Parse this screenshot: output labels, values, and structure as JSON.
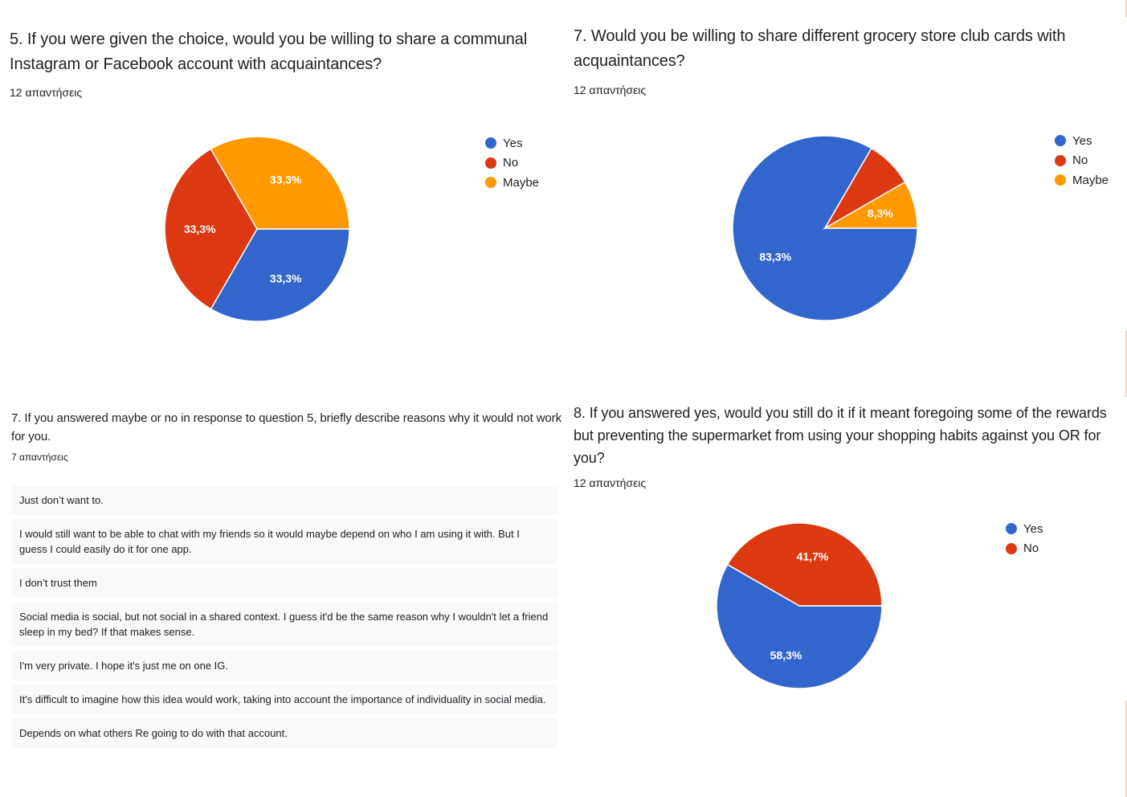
{
  "chart_data": [
    {
      "type": "pie",
      "title": "5. If you were given the choice, would you be willing to share a communal Instagram or Facebook account with acquaintances?",
      "subtitle": "12 απαντήσεις",
      "categories": [
        "Yes",
        "No",
        "Maybe"
      ],
      "values": [
        33.3,
        33.3,
        33.3
      ],
      "slice_labels": [
        "33,3%",
        "33,3%",
        "33,3%"
      ],
      "colors": [
        "#3366cc",
        "#dc3912",
        "#ff9900"
      ],
      "legend": "right"
    },
    {
      "type": "pie",
      "title": "7. Would you be willing to share different grocery store club cards with acquaintances?",
      "subtitle": "12 απαντήσεις",
      "categories": [
        "Yes",
        "No",
        "Maybe"
      ],
      "values": [
        83.3,
        8.3,
        8.3
      ],
      "slice_labels": [
        "83,3%",
        "",
        "8,3%"
      ],
      "colors": [
        "#3366cc",
        "#dc3912",
        "#ff9900"
      ],
      "legend": "right"
    },
    {
      "type": "pie",
      "title": "8. If you answered yes, would you still do it if it meant foregoing some of the rewards but preventing the supermarket from using your shopping habits against you OR for you?",
      "subtitle": "12 απαντήσεις",
      "categories": [
        "Yes",
        "No"
      ],
      "values": [
        58.3,
        41.7
      ],
      "slice_labels": [
        "58,3%",
        "41,7%"
      ],
      "colors": [
        "#3366cc",
        "#dc3912"
      ],
      "legend": "right"
    }
  ],
  "reasons": {
    "title": "7. If you answered maybe or no in response to question 5, briefly describe reasons why it would not work for you.",
    "count": "7 απαντήσεις",
    "responses": [
      "Just don’t want to.",
      "I would still want to be able to chat with my friends so it would maybe depend on who I am using it with. But I guess I could easily do it for one app.",
      "I don’t trust them",
      "Social media is social, but not social in a shared context. I guess it'd be the same reason why I wouldn't let a friend sleep in my bed? If that makes sense.",
      "I'm very private. I hope it's just me on one IG.",
      "It's difficult to imagine how this idea would work, taking into account the importance of individuality in social media.",
      "Depends on what others Re going to do with that account."
    ]
  }
}
